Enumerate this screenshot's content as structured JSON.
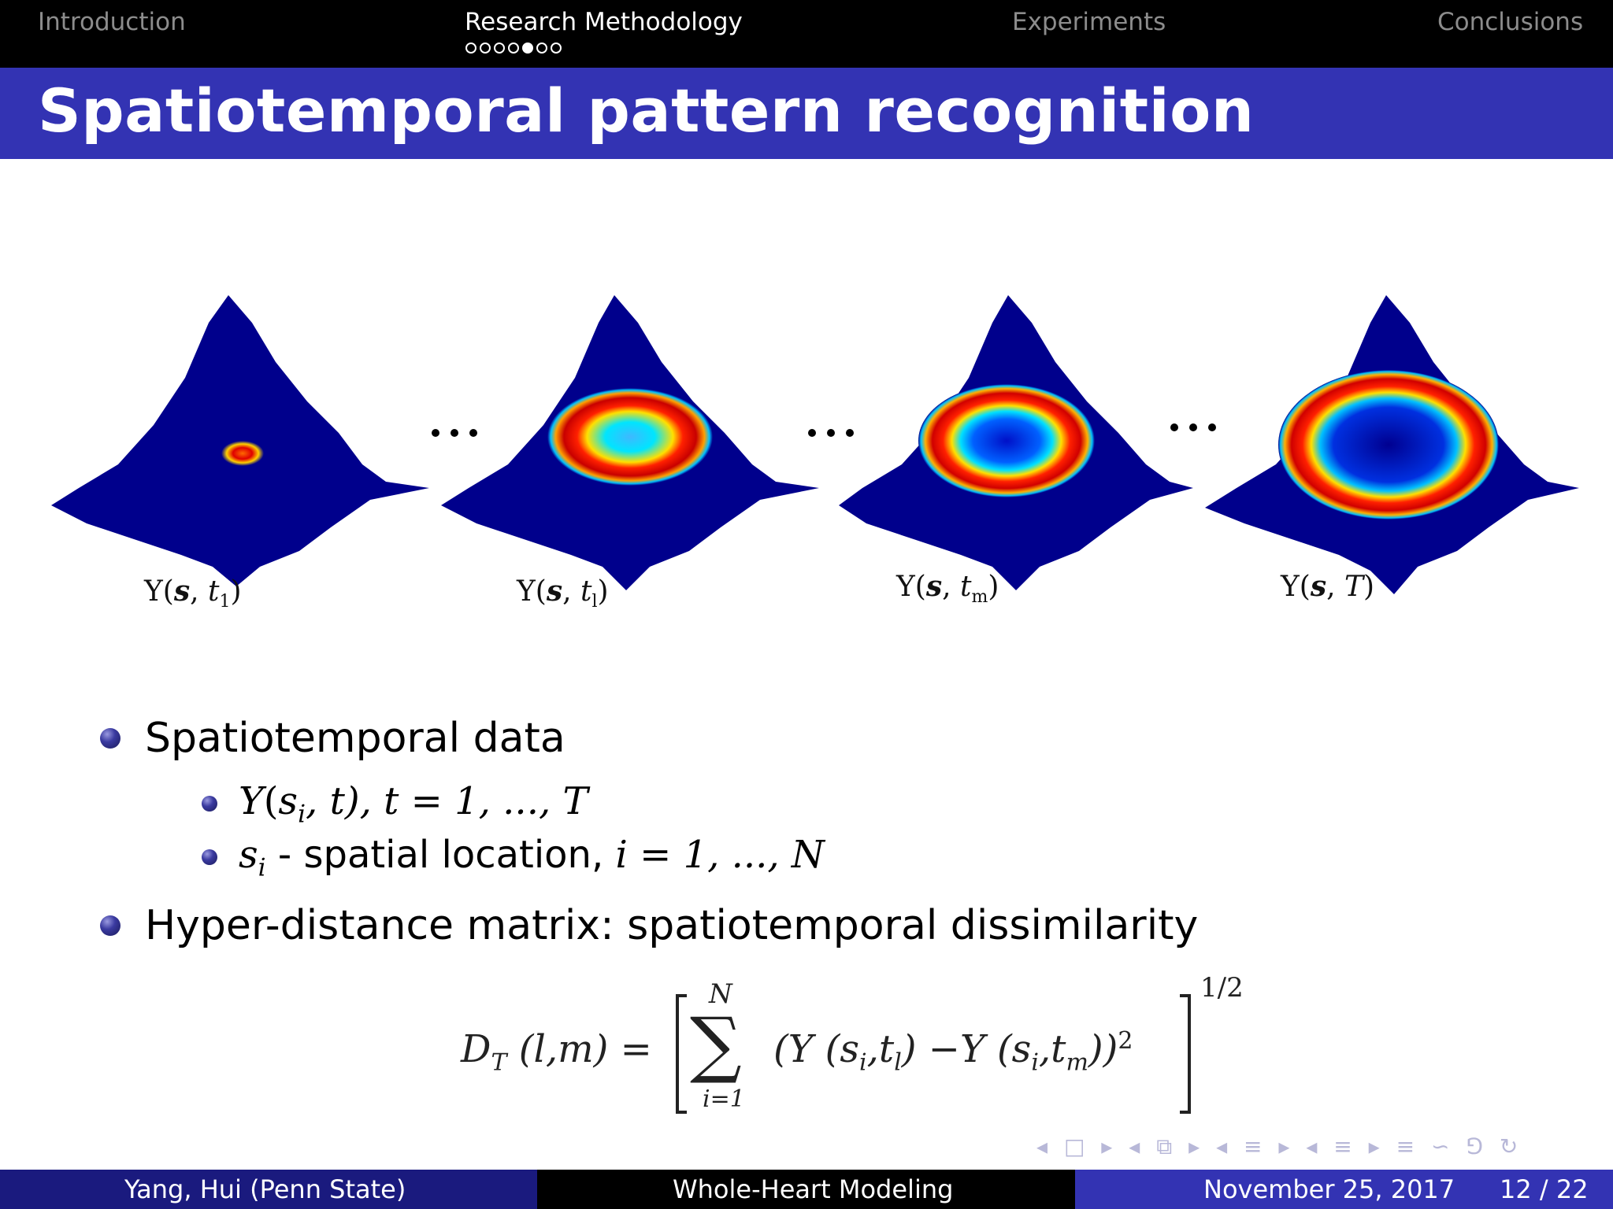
{
  "navigation": {
    "sections": [
      "Introduction",
      "Research Methodology",
      "Experiments",
      "Conclusions"
    ],
    "active_section": "Research Methodology",
    "progress_dots": {
      "total": 7,
      "current": 5
    }
  },
  "slide": {
    "title": "Spatiotemporal pattern recognition"
  },
  "figure": {
    "panel_labels": [
      {
        "func": "Y(",
        "arg1": "s",
        "sep": ", ",
        "t": "t",
        "sub": "1",
        "close": ")"
      },
      {
        "func": "Y(",
        "arg1": "s",
        "sep": ", ",
        "t": "t",
        "sub": "l",
        "close": ")"
      },
      {
        "func": "Y(",
        "arg1": "s",
        "sep": ", ",
        "t": "t",
        "sub": "m",
        "close": ")"
      },
      {
        "func": "Y(",
        "arg1": "s",
        "sep": ", ",
        "t": "T",
        "sub": "",
        "close": ")"
      }
    ],
    "separator": "..."
  },
  "bullets": [
    {
      "text": "Spatiotemporal data"
    },
    {
      "math": {
        "y": "Y",
        "open": "(",
        "s": "s",
        "i": "i",
        "rest": ", t), t = 1, ..., T"
      }
    },
    {
      "math_prefix": "s",
      "math_sub": "i",
      "text": " - spatial location, ",
      "math_suffix": "i = 1, ..., N"
    },
    {
      "text": "Hyper-distance matrix: spatiotemporal dissimilarity"
    }
  ],
  "equation": {
    "lhs": "D",
    "lhs_sub": "T",
    "lhs_args": "(l,m) =",
    "sum_upper": "N",
    "sum_lower": "i=1",
    "body": "(Y (s",
    "body_i": "i",
    "body_t": ",t",
    "body_l": "l",
    "body_mid": ") −Y (s",
    "body_i2": "i",
    "body_t2": ",t",
    "body_m": "m",
    "body_end": "))",
    "square": "2",
    "outer_exp": "1/2"
  },
  "nav_symbols": "◂ □ ▸ ◂ ⧉ ▸ ◂ ≡ ▸ ◂ ≡ ▸ ≡ ∽ ⅁ ↻",
  "footer": {
    "author": "Yang, Hui  (Penn State)",
    "talk_title": "Whole-Heart Modeling",
    "date": "November 25, 2017",
    "page": "12 / 22"
  },
  "colors": {
    "title_bar": "#3333b3",
    "footer_left": "#1a1a7e",
    "footer_mid": "#000000",
    "footer_right": "#3333b3",
    "surface": "#00008c"
  }
}
